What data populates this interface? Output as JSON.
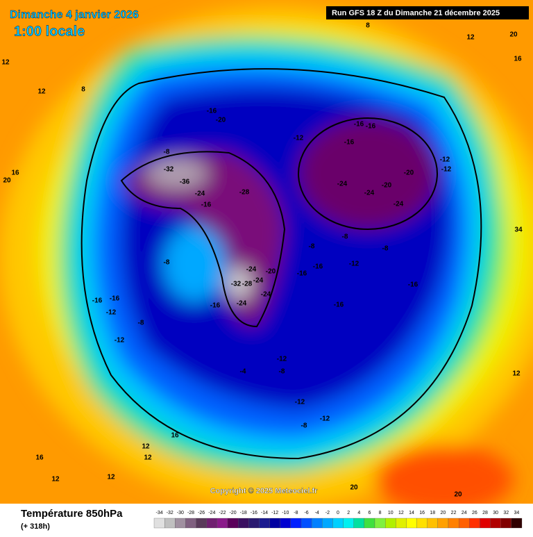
{
  "header": {
    "title": "Dimanche 4 janvier 2026",
    "subtitle": "1:00 locale",
    "run": "Run GFS 18 Z du Dimanche 21 décembre 2025"
  },
  "copyright": "Copyright © 2025 Meteociel.fr",
  "legend": {
    "title": "Température 850hPa",
    "lead": "(+ 318h)",
    "ticks": [
      -34,
      -32,
      -30,
      -28,
      -26,
      -24,
      -22,
      -20,
      -18,
      -16,
      -14,
      -12,
      -10,
      -8,
      -6,
      -4,
      -2,
      0,
      2,
      4,
      6,
      8,
      10,
      12,
      14,
      16,
      18,
      20,
      22,
      24,
      26,
      28,
      30,
      32,
      34
    ],
    "colors": [
      "#e0e0e0",
      "#c0c0c0",
      "#a090a0",
      "#806080",
      "#5a3a5a",
      "#702070",
      "#8a1a8a",
      "#5a005a",
      "#3a1060",
      "#2a1a70",
      "#1a1a90",
      "#0000a0",
      "#0000d0",
      "#0020ff",
      "#0050ff",
      "#0080ff",
      "#00a8ff",
      "#00d0ff",
      "#00f0f0",
      "#00e0a0",
      "#40e040",
      "#80f040",
      "#b0f000",
      "#e0f000",
      "#ffff00",
      "#ffe000",
      "#ffc000",
      "#ffa000",
      "#ff8000",
      "#ff6000",
      "#ff3000",
      "#e00000",
      "#b00000",
      "#800000",
      "#300000"
    ]
  },
  "map": {
    "contour_labels": [
      -16,
      -20,
      -8,
      -32,
      -36,
      -24,
      -16,
      -28,
      -20,
      -24,
      -24,
      -24,
      -32,
      -28,
      -24,
      -16,
      -16,
      -16,
      -16,
      -12,
      -8,
      -8,
      -8,
      -16,
      -16,
      -16,
      -16,
      -24,
      -24,
      -20,
      -24,
      -20,
      -12,
      -12,
      -12,
      -12,
      -8,
      -12,
      -12,
      -8,
      -4,
      -12,
      -12,
      -16,
      -16,
      -8,
      -8,
      12,
      16,
      20,
      12,
      8,
      8,
      12,
      20,
      16,
      12,
      12,
      16,
      20,
      20,
      12,
      34,
      16,
      12,
      12
    ]
  }
}
